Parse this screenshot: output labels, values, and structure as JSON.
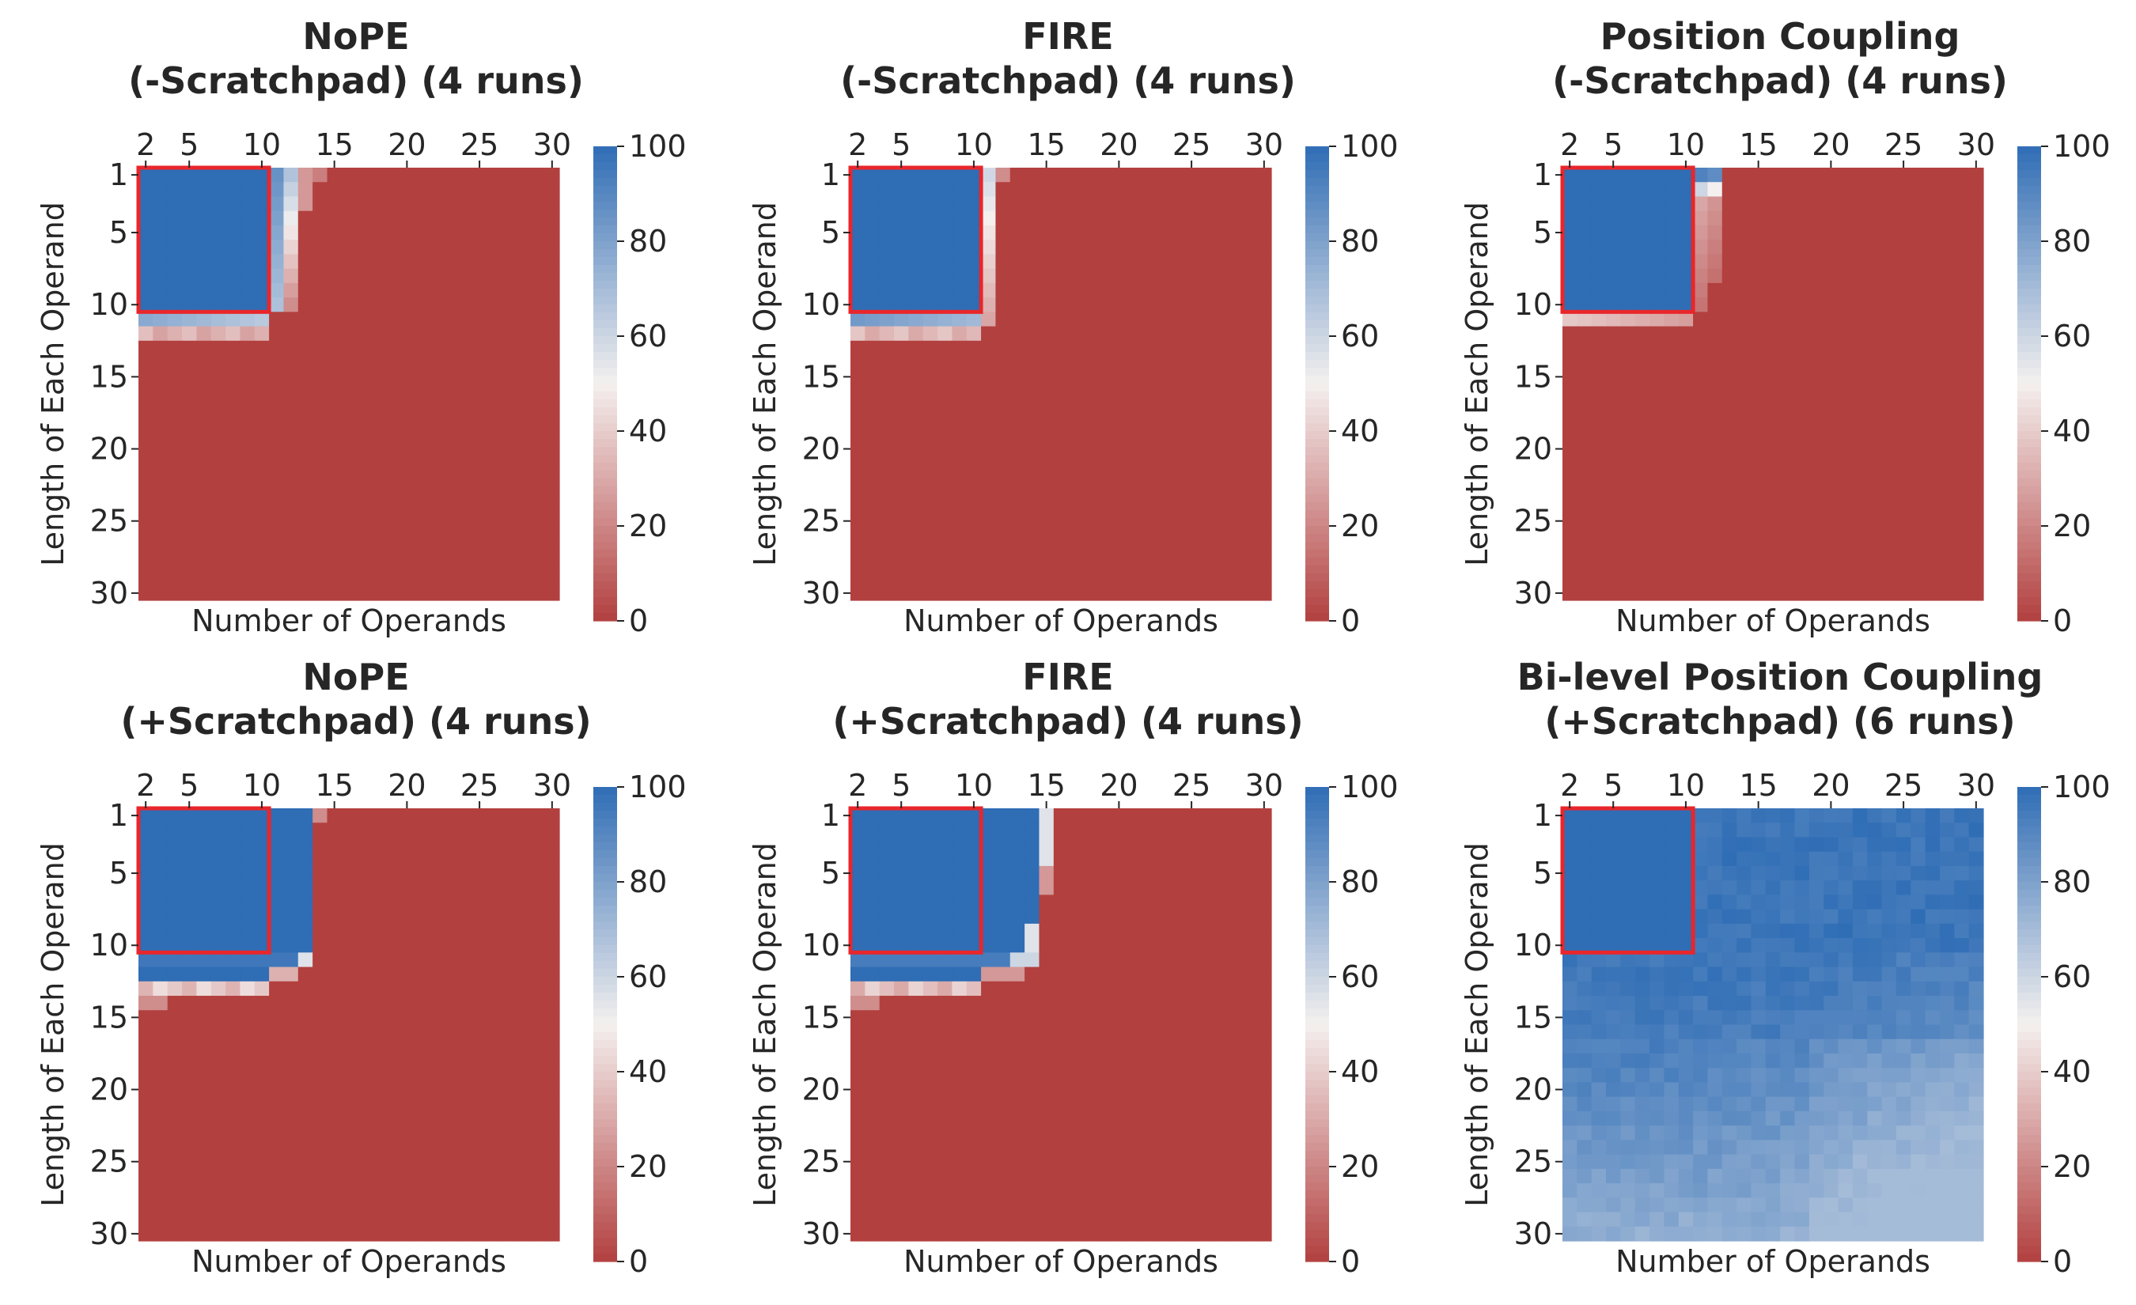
{
  "figure": {
    "xlabel": "Number of Operands",
    "ylabel": "Length of Each Operand"
  },
  "colorbar": {
    "ticks": [
      "0",
      "20",
      "40",
      "60",
      "80",
      "100"
    ],
    "colors": {
      "low": "#b2403f",
      "mid": "#f4f0ef",
      "high": "#2f6db5"
    }
  },
  "highlight": {
    "color": "#e8262b",
    "label": "training range 2-10 operands, length 1-10"
  },
  "chart_data": [
    {
      "type": "heatmap",
      "title_lines": [
        "NoPE",
        "(-Scratchpad) (4 runs)"
      ],
      "xlabel": "Number of Operands",
      "ylabel": "Length of Each Operand",
      "x_ticks": [
        2,
        5,
        10,
        15,
        20,
        25,
        30
      ],
      "y_ticks": [
        1,
        5,
        10,
        15,
        20,
        25,
        30
      ],
      "x_range": [
        2,
        30
      ],
      "y_range": [
        1,
        30
      ],
      "value_range": [
        0,
        100
      ],
      "pattern": "nope_minus",
      "description_values": {
        "in_distribution_accuracy": 100,
        "far_ood_accuracy": 0
      }
    },
    {
      "type": "heatmap",
      "title_lines": [
        "FIRE",
        "(-Scratchpad) (4 runs)"
      ],
      "xlabel": "Number of Operands",
      "ylabel": "Length of Each Operand",
      "x_ticks": [
        2,
        5,
        10,
        15,
        20,
        25,
        30
      ],
      "y_ticks": [
        1,
        5,
        10,
        15,
        20,
        25,
        30
      ],
      "x_range": [
        2,
        30
      ],
      "y_range": [
        1,
        30
      ],
      "value_range": [
        0,
        100
      ],
      "pattern": "fire_minus",
      "description_values": {
        "in_distribution_accuracy": 100,
        "far_ood_accuracy": 0
      }
    },
    {
      "type": "heatmap",
      "title_lines": [
        "Position Coupling",
        "(-Scratchpad) (4 runs)"
      ],
      "xlabel": "Number of Operands",
      "ylabel": "Length of Each Operand",
      "x_ticks": [
        2,
        5,
        10,
        15,
        20,
        25,
        30
      ],
      "y_ticks": [
        1,
        5,
        10,
        15,
        20,
        25,
        30
      ],
      "x_range": [
        2,
        30
      ],
      "y_range": [
        1,
        30
      ],
      "value_range": [
        0,
        100
      ],
      "pattern": "pc_minus",
      "description_values": {
        "in_distribution_accuracy": 100,
        "far_ood_accuracy": 0
      }
    },
    {
      "type": "heatmap",
      "title_lines": [
        "NoPE",
        "(+Scratchpad) (4 runs)"
      ],
      "xlabel": "Number of Operands",
      "ylabel": "Length of Each Operand",
      "x_ticks": [
        2,
        5,
        10,
        15,
        20,
        25,
        30
      ],
      "y_ticks": [
        1,
        5,
        10,
        15,
        20,
        25,
        30
      ],
      "x_range": [
        2,
        30
      ],
      "y_range": [
        1,
        30
      ],
      "value_range": [
        0,
        100
      ],
      "pattern": "nope_plus",
      "description_values": {
        "in_distribution_accuracy": 100,
        "far_ood_accuracy": 0
      }
    },
    {
      "type": "heatmap",
      "title_lines": [
        "FIRE",
        "(+Scratchpad) (4 runs)"
      ],
      "xlabel": "Number of Operands",
      "ylabel": "Length of Each Operand",
      "x_ticks": [
        2,
        5,
        10,
        15,
        20,
        25,
        30
      ],
      "y_ticks": [
        1,
        5,
        10,
        15,
        20,
        25,
        30
      ],
      "x_range": [
        2,
        30
      ],
      "y_range": [
        1,
        30
      ],
      "value_range": [
        0,
        100
      ],
      "pattern": "fire_plus",
      "description_values": {
        "in_distribution_accuracy": 100,
        "far_ood_accuracy": 0
      }
    },
    {
      "type": "heatmap",
      "title_lines": [
        "Bi-level Position Coupling",
        "(+Scratchpad) (6 runs)"
      ],
      "xlabel": "Number of Operands",
      "ylabel": "Length of Each Operand",
      "x_ticks": [
        2,
        5,
        10,
        15,
        20,
        25,
        30
      ],
      "y_ticks": [
        1,
        5,
        10,
        15,
        20,
        25,
        30
      ],
      "x_range": [
        2,
        30
      ],
      "y_range": [
        1,
        30
      ],
      "value_range": [
        0,
        100
      ],
      "pattern": "bilevel_plus",
      "description_values": {
        "in_distribution_accuracy": 100,
        "far_ood_min_accuracy": 70
      }
    }
  ]
}
